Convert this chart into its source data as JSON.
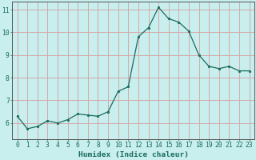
{
  "x": [
    0,
    1,
    2,
    3,
    4,
    5,
    6,
    7,
    8,
    9,
    10,
    11,
    12,
    13,
    14,
    15,
    16,
    17,
    18,
    19,
    20,
    21,
    22,
    23
  ],
  "y": [
    6.3,
    5.75,
    5.85,
    6.1,
    6.0,
    6.15,
    6.4,
    6.35,
    6.3,
    6.5,
    7.4,
    7.6,
    9.8,
    10.2,
    11.1,
    10.6,
    10.45,
    10.05,
    9.0,
    8.5,
    8.4,
    8.5,
    8.3,
    8.3
  ],
  "line_color": "#1a6b5e",
  "bg_color": "#c8eeed",
  "grid_color": "#d4aaaa",
  "xlabel": "Humidex (Indice chaleur)",
  "xlim": [
    -0.5,
    23.5
  ],
  "ylim": [
    5.3,
    11.35
  ],
  "yticks": [
    6,
    7,
    8,
    9,
    10,
    11
  ],
  "xticks": [
    0,
    1,
    2,
    3,
    4,
    5,
    6,
    7,
    8,
    9,
    10,
    11,
    12,
    13,
    14,
    15,
    16,
    17,
    18,
    19,
    20,
    21,
    22,
    23
  ],
  "tick_color": "#1a6b5e",
  "label_fontsize": 6.8,
  "tick_fontsize": 5.8,
  "spine_color": "#555555"
}
